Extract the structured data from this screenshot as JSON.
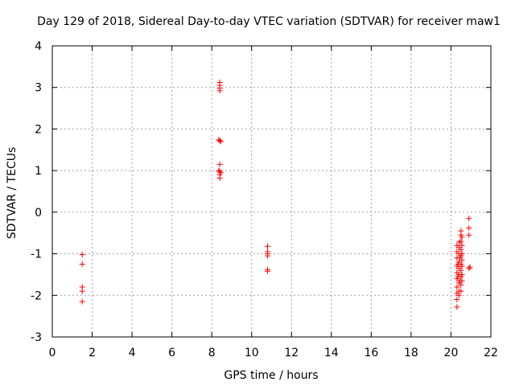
{
  "chart_data": {
    "type": "scatter",
    "title": "Day 129 of 2018, Sidereal Day-to-day VTEC variation (SDTVAR) for receiver maw1",
    "xlabel": "GPS time / hours",
    "ylabel": "SDTVAR / TECUs",
    "xlim": [
      0,
      22
    ],
    "ylim": [
      -3,
      4
    ],
    "xticks": [
      0,
      2,
      4,
      6,
      8,
      10,
      12,
      14,
      16,
      18,
      20,
      22
    ],
    "yticks": [
      -3,
      -2,
      -1,
      0,
      1,
      2,
      3,
      4
    ],
    "grid": true,
    "marker": "+",
    "color": "#ff0000",
    "series": [
      {
        "name": "maw1",
        "points": [
          [
            1.5,
            -1.02
          ],
          [
            1.5,
            -1.25
          ],
          [
            1.5,
            -1.8
          ],
          [
            1.5,
            -1.9
          ],
          [
            1.5,
            -2.15
          ],
          [
            8.4,
            3.12
          ],
          [
            8.4,
            3.05
          ],
          [
            8.4,
            2.98
          ],
          [
            8.4,
            2.92
          ],
          [
            8.35,
            1.74
          ],
          [
            8.4,
            1.72
          ],
          [
            8.45,
            1.7
          ],
          [
            8.4,
            1.15
          ],
          [
            8.35,
            1.0
          ],
          [
            8.4,
            0.98
          ],
          [
            8.45,
            0.95
          ],
          [
            8.4,
            0.9
          ],
          [
            8.4,
            0.82
          ],
          [
            10.8,
            -0.82
          ],
          [
            10.8,
            -0.95
          ],
          [
            10.8,
            -1.0
          ],
          [
            10.8,
            -1.05
          ],
          [
            10.8,
            -1.38
          ],
          [
            10.8,
            -1.42
          ],
          [
            20.3,
            -0.8
          ],
          [
            20.3,
            -0.95
          ],
          [
            20.3,
            -1.1
          ],
          [
            20.3,
            -1.3
          ],
          [
            20.3,
            -1.45
          ],
          [
            20.3,
            -1.6
          ],
          [
            20.3,
            -1.8
          ],
          [
            20.3,
            -1.95
          ],
          [
            20.3,
            -2.1
          ],
          [
            20.3,
            -2.28
          ],
          [
            20.4,
            -0.85
          ],
          [
            20.4,
            -1.0
          ],
          [
            20.4,
            -1.2
          ],
          [
            20.4,
            -1.35
          ],
          [
            20.4,
            -1.5
          ],
          [
            20.4,
            -1.7
          ],
          [
            20.4,
            -1.9
          ],
          [
            20.4,
            -2.0
          ],
          [
            20.5,
            -0.45
          ],
          [
            20.5,
            -0.55
          ],
          [
            20.5,
            -0.7
          ],
          [
            20.5,
            -0.9
          ],
          [
            20.5,
            -1.05
          ],
          [
            20.5,
            -1.25
          ],
          [
            20.5,
            -1.4
          ],
          [
            20.5,
            -1.55
          ],
          [
            20.5,
            -1.75
          ],
          [
            20.5,
            -1.9
          ],
          [
            20.55,
            -0.6
          ],
          [
            20.55,
            -0.8
          ],
          [
            20.55,
            -1.0
          ],
          [
            20.55,
            -1.15
          ],
          [
            20.55,
            -1.3
          ],
          [
            20.55,
            -1.5
          ],
          [
            20.55,
            -1.65
          ],
          [
            20.35,
            -1.25
          ],
          [
            20.45,
            -1.1
          ],
          [
            20.45,
            -1.65
          ],
          [
            20.35,
            -1.55
          ],
          [
            20.42,
            -0.72
          ],
          [
            20.9,
            -0.15
          ],
          [
            20.9,
            -0.38
          ],
          [
            20.9,
            -0.55
          ],
          [
            20.95,
            -1.32
          ],
          [
            20.9,
            -1.35
          ]
        ]
      }
    ]
  }
}
